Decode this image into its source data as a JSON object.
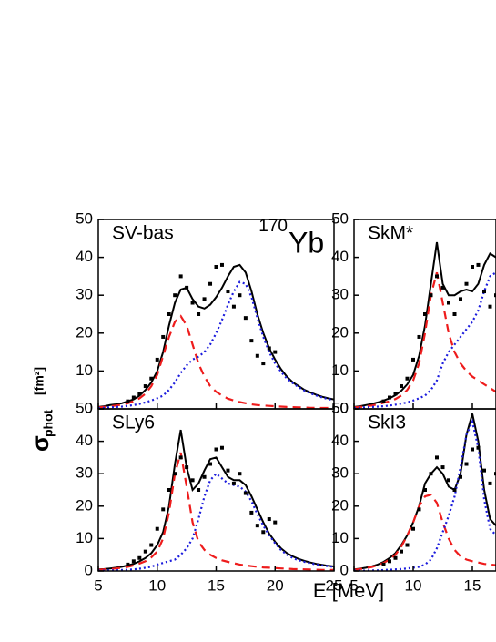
{
  "figure": {
    "y_label": "σ",
    "y_label_subscript": "phot",
    "y_label_unit": "[fm²]",
    "x_label": "E  [MeV]"
  },
  "chart_data": [
    {
      "type": "line",
      "title": "SV-bas",
      "annotation": {
        "mass": "170",
        "element": "Yb"
      },
      "xlim": [
        5,
        25
      ],
      "ylim": [
        0,
        50
      ],
      "xticks": [
        5,
        10,
        15,
        20,
        25
      ],
      "yticks": [
        0,
        10,
        20,
        30,
        40,
        50
      ],
      "show_x_tick_labels": false,
      "x": [
        5,
        5.5,
        6,
        6.5,
        7,
        7.5,
        8,
        8.5,
        9,
        9.5,
        10,
        10.5,
        11,
        11.5,
        12,
        12.5,
        13,
        13.5,
        14,
        14.5,
        15,
        15.5,
        16,
        16.5,
        17,
        17.5,
        18,
        18.5,
        19,
        19.5,
        20,
        20.5,
        21,
        21.5,
        22,
        22.5,
        23,
        23.5,
        24,
        24.5,
        25
      ],
      "series": [
        {
          "color": "#000000",
          "dash": "solid",
          "values": [
            0.5,
            0.7,
            1,
            1.2,
            1.5,
            2,
            2.5,
            3.5,
            5,
            7,
            10,
            15,
            22,
            28,
            31.5,
            32,
            29,
            27,
            26.5,
            27.5,
            29.5,
            32,
            35,
            37.5,
            38,
            36,
            31,
            25,
            20,
            16,
            13,
            10.5,
            8.5,
            7,
            6,
            5,
            4.3,
            3.7,
            3.2,
            2.8,
            2.5
          ]
        },
        {
          "color": "#ee1c1c",
          "dash": "dashed",
          "values": [
            0.4,
            0.5,
            0.7,
            0.9,
            1.1,
            1.5,
            2,
            2.8,
            4,
            6,
            9,
            14,
            19,
            23,
            24.5,
            22,
            17,
            12,
            8.5,
            6,
            4.5,
            3.5,
            2.7,
            2.2,
            1.8,
            1.5,
            1.2,
            1,
            0.9,
            0.8,
            0.7,
            0.6,
            0.5,
            0.45,
            0.4,
            0.35,
            0.3,
            0.3,
            0.25,
            0.25,
            0.2
          ]
        },
        {
          "color": "#1c1cdd",
          "dash": "dotted",
          "values": [
            0.2,
            0.3,
            0.4,
            0.5,
            0.6,
            0.8,
            1,
            1.3,
            1.7,
            2.2,
            2.8,
            3.5,
            5,
            7,
            9.5,
            11.5,
            13,
            13.8,
            15,
            17,
            20,
            23.5,
            27.5,
            31,
            33.5,
            33,
            29.5,
            24,
            19,
            15,
            12,
            9.8,
            8,
            6.8,
            5.7,
            4.8,
            4.1,
            3.5,
            3,
            2.6,
            2.3
          ]
        },
        {
          "color": "#000000",
          "marker": "square",
          "x": [
            7.5,
            8,
            8.5,
            9,
            9.5,
            10,
            10.5,
            11,
            11.5,
            12,
            12.5,
            13,
            13.5,
            14,
            14.5,
            15,
            15.5,
            16,
            16.5,
            17,
            17.5,
            18,
            18.5,
            19,
            19.5,
            20
          ],
          "values": [
            2,
            3,
            4,
            6,
            8,
            13,
            19,
            25,
            30,
            35,
            32,
            28,
            25,
            29,
            33,
            37.5,
            38,
            31,
            27,
            30,
            24,
            18,
            14,
            12,
            16,
            15
          ]
        }
      ]
    },
    {
      "type": "line",
      "title": "SkM*",
      "xlim": [
        5,
        17
      ],
      "ylim": [
        0,
        50
      ],
      "xticks": [
        5,
        10,
        15
      ],
      "yticks": [
        0,
        10,
        20,
        30,
        40,
        50
      ],
      "show_x_tick_labels": false,
      "x": [
        5,
        5.5,
        6,
        6.5,
        7,
        7.5,
        8,
        8.5,
        9,
        9.5,
        10,
        10.5,
        11,
        11.5,
        12,
        12.5,
        13,
        13.5,
        14,
        14.5,
        15,
        15.5,
        16,
        16.5,
        17
      ],
      "series": [
        {
          "color": "#000000",
          "dash": "solid",
          "values": [
            0.5,
            0.7,
            1,
            1.3,
            1.7,
            2.2,
            2.8,
            3.6,
            4.8,
            6.5,
            9,
            14,
            22,
            33,
            44,
            33,
            30,
            30,
            31,
            31.5,
            31,
            33,
            38,
            41,
            40
          ]
        },
        {
          "color": "#ee1c1c",
          "dash": "dashed",
          "values": [
            0.4,
            0.5,
            0.7,
            0.9,
            1.2,
            1.6,
            2,
            2.6,
            3.5,
            5,
            7.5,
            12,
            20,
            30,
            36,
            28,
            20,
            15,
            12,
            10,
            8.5,
            7.5,
            6.5,
            5.5,
            4.5
          ]
        },
        {
          "color": "#1c1cdd",
          "dash": "dotted",
          "values": [
            0.2,
            0.3,
            0.4,
            0.5,
            0.6,
            0.7,
            0.9,
            1.1,
            1.4,
            1.7,
            2.2,
            2.8,
            3.5,
            5,
            7.5,
            12,
            15,
            17,
            19,
            21,
            23,
            26,
            31,
            35,
            36
          ]
        },
        {
          "color": "#000000",
          "marker": "square",
          "x": [
            7.5,
            8,
            8.5,
            9,
            9.5,
            10,
            10.5,
            11,
            11.5,
            12,
            12.5,
            13,
            13.5,
            14,
            14.5,
            15,
            15.5,
            16,
            16.5,
            17
          ],
          "values": [
            2,
            3,
            4,
            6,
            8,
            13,
            19,
            25,
            30,
            35,
            32,
            28,
            25,
            29,
            33,
            37.5,
            38,
            31,
            27,
            30
          ]
        }
      ]
    },
    {
      "type": "line",
      "title": "SLy6",
      "xlim": [
        5,
        25
      ],
      "ylim": [
        0,
        50
      ],
      "xticks": [
        5,
        10,
        15,
        20,
        25
      ],
      "yticks": [
        0,
        10,
        20,
        30,
        40,
        50
      ],
      "show_x_tick_labels": true,
      "x": [
        5,
        5.5,
        6,
        6.5,
        7,
        7.5,
        8,
        8.5,
        9,
        9.5,
        10,
        10.5,
        11,
        11.5,
        12,
        12.5,
        13,
        13.5,
        14,
        14.5,
        15,
        15.5,
        16,
        16.5,
        17,
        17.5,
        18,
        18.5,
        19,
        19.5,
        20,
        20.5,
        21,
        21.5,
        22,
        22.5,
        23,
        23.5,
        24,
        24.5,
        25
      ],
      "series": [
        {
          "color": "#000000",
          "dash": "solid",
          "values": [
            0.5,
            0.6,
            0.8,
            1,
            1.3,
            1.7,
            2.2,
            3,
            4,
            5.5,
            8,
            12,
            20,
            33,
            43.5,
            32,
            25,
            27,
            31,
            34.5,
            35,
            32,
            29,
            28,
            28,
            26.5,
            23,
            19,
            15,
            11.5,
            9,
            7,
            5.5,
            4.5,
            3.7,
            3.1,
            2.6,
            2.2,
            1.9,
            1.6,
            1.4
          ]
        },
        {
          "color": "#ee1c1c",
          "dash": "dashed",
          "values": [
            0.4,
            0.5,
            0.6,
            0.8,
            1,
            1.3,
            1.7,
            2.3,
            3,
            4.2,
            6,
            10,
            18,
            30,
            36.5,
            26,
            15,
            9,
            6.5,
            5,
            4,
            3.3,
            2.8,
            2.4,
            2,
            1.7,
            1.5,
            1.3,
            1.1,
            1,
            0.9,
            0.8,
            0.7,
            0.6,
            0.55,
            0.5,
            0.45,
            0.4,
            0.35,
            0.3,
            0.3
          ]
        },
        {
          "color": "#1c1cdd",
          "dash": "dotted",
          "values": [
            0.1,
            0.1,
            0.2,
            0.2,
            0.3,
            0.4,
            0.5,
            0.7,
            1,
            1.3,
            2,
            2.5,
            3,
            3.5,
            5,
            7,
            10,
            16,
            23,
            28,
            30,
            28.5,
            27,
            26.5,
            26,
            24.5,
            21.5,
            17.5,
            14,
            11,
            8.5,
            6.5,
            5,
            4,
            3.3,
            2.8,
            2.4,
            2,
            1.7,
            1.5,
            1.3
          ]
        },
        {
          "color": "#000000",
          "marker": "square",
          "x": [
            7.5,
            8,
            8.5,
            9,
            9.5,
            10,
            10.5,
            11,
            11.5,
            12,
            12.5,
            13,
            13.5,
            14,
            14.5,
            15,
            15.5,
            16,
            16.5,
            17,
            17.5,
            18,
            18.5,
            19,
            19.5,
            20
          ],
          "values": [
            2,
            3,
            4,
            6,
            8,
            13,
            19,
            25,
            30,
            35,
            32,
            28,
            25,
            29,
            33,
            37.5,
            38,
            31,
            27,
            30,
            24,
            18,
            14,
            12,
            16,
            15
          ]
        }
      ]
    },
    {
      "type": "line",
      "title": "SkI3",
      "xlim": [
        5,
        17
      ],
      "ylim": [
        0,
        50
      ],
      "xticks": [
        5,
        10,
        15
      ],
      "yticks": [
        0,
        10,
        20,
        30,
        40,
        50
      ],
      "show_x_tick_labels": true,
      "x": [
        5,
        5.5,
        6,
        6.5,
        7,
        7.5,
        8,
        8.5,
        9,
        9.5,
        10,
        10.5,
        11,
        11.5,
        12,
        12.5,
        13,
        13.5,
        14,
        14.5,
        15,
        15.5,
        16,
        16.5,
        17
      ],
      "series": [
        {
          "color": "#000000",
          "dash": "solid",
          "values": [
            0.5,
            0.7,
            1,
            1.4,
            2,
            2.8,
            4,
            5.5,
            8,
            11,
            15,
            20,
            27,
            30,
            32,
            30,
            26,
            25,
            30,
            42,
            48.5,
            40,
            25,
            16,
            14
          ]
        },
        {
          "color": "#ee1c1c",
          "dash": "dashed",
          "values": [
            0.4,
            0.6,
            0.9,
            1.2,
            1.8,
            2.5,
            3.5,
            5,
            7.5,
            11,
            15,
            20,
            23,
            23.5,
            21,
            15,
            10,
            6.5,
            4.5,
            3.5,
            3,
            2.6,
            2.2,
            2,
            1.8
          ]
        },
        {
          "color": "#1c1cdd",
          "dash": "dotted",
          "values": [
            0.1,
            0.1,
            0.1,
            0.2,
            0.2,
            0.3,
            0.4,
            0.5,
            0.6,
            0.8,
            1,
            1.3,
            2,
            3.5,
            7,
            12,
            17,
            23,
            32,
            42,
            46,
            38,
            22,
            13,
            11
          ]
        },
        {
          "color": "#000000",
          "marker": "square",
          "x": [
            7.5,
            8,
            8.5,
            9,
            9.5,
            10,
            10.5,
            11,
            11.5,
            12,
            12.5,
            13,
            13.5,
            14,
            14.5,
            15,
            15.5,
            16,
            16.5,
            17
          ],
          "values": [
            2,
            3,
            4,
            6,
            8,
            13,
            19,
            25,
            30,
            35,
            32,
            28,
            25,
            29,
            33,
            37.5,
            38,
            31,
            27,
            30
          ]
        }
      ]
    }
  ]
}
